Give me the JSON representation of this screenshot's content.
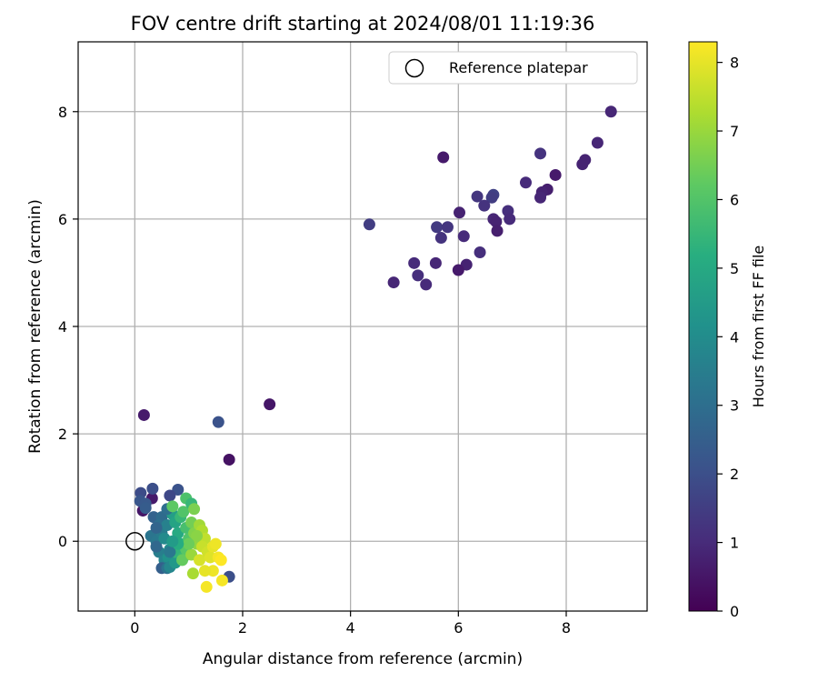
{
  "chart_data": {
    "type": "scatter",
    "title": "FOV centre drift starting at 2024/08/01 11:19:36",
    "xlabel": "Angular distance from reference (arcmin)",
    "ylabel": "Rotation from reference (arcmin)",
    "xlim": [
      -1.05,
      9.5
    ],
    "ylim": [
      -1.3,
      9.3
    ],
    "xticks": [
      0,
      2,
      4,
      6,
      8
    ],
    "yticks": [
      0,
      2,
      4,
      6,
      8
    ],
    "grid": true,
    "legend": {
      "position": "top-right",
      "entries": [
        "Reference platepar"
      ]
    },
    "reference_point": {
      "x": 0,
      "y": 0,
      "label": "Reference platepar"
    },
    "colorbar": {
      "label": "Hours from first FF file",
      "colormap": "viridis",
      "range": [
        0,
        8.3
      ],
      "ticks": [
        0,
        1,
        2,
        3,
        4,
        5,
        6,
        7,
        8
      ]
    },
    "series": [
      {
        "values": [
          [
            8.83,
            8.0,
            0.9
          ],
          [
            8.58,
            7.42,
            0.9
          ],
          [
            8.35,
            7.1,
            0.8
          ],
          [
            8.3,
            7.02,
            0.8
          ],
          [
            7.52,
            7.22,
            1.2
          ],
          [
            7.8,
            6.82,
            0.6
          ],
          [
            7.25,
            6.68,
            1.0
          ],
          [
            7.65,
            6.55,
            0.7
          ],
          [
            7.55,
            6.5,
            0.8
          ],
          [
            7.52,
            6.4,
            0.9
          ],
          [
            5.72,
            7.15,
            0.6
          ],
          [
            6.65,
            6.45,
            1.6
          ],
          [
            6.62,
            6.4,
            1.5
          ],
          [
            6.35,
            6.42,
            1.3
          ],
          [
            6.48,
            6.25,
            1.2
          ],
          [
            6.92,
            6.15,
            1.1
          ],
          [
            6.95,
            6.0,
            1.0
          ],
          [
            6.65,
            6.0,
            0.9
          ],
          [
            6.7,
            5.95,
            0.8
          ],
          [
            6.72,
            5.78,
            0.7
          ],
          [
            6.02,
            6.12,
            0.8
          ],
          [
            5.6,
            5.85,
            1.4
          ],
          [
            5.8,
            5.85,
            1.3
          ],
          [
            5.68,
            5.65,
            1.2
          ],
          [
            6.1,
            5.68,
            1.0
          ],
          [
            6.4,
            5.38,
            1.1
          ],
          [
            5.18,
            5.18,
            1.0
          ],
          [
            5.58,
            5.18,
            0.9
          ],
          [
            6.15,
            5.15,
            0.8
          ],
          [
            5.25,
            4.95,
            1.1
          ],
          [
            6.0,
            5.05,
            0.6
          ],
          [
            5.4,
            4.78,
            1.0
          ],
          [
            4.8,
            4.82,
            0.9
          ],
          [
            4.35,
            5.9,
            1.5
          ],
          [
            2.5,
            2.55,
            0.5
          ],
          [
            1.55,
            2.22,
            2.1
          ],
          [
            1.75,
            1.52,
            0.4
          ],
          [
            0.17,
            2.35,
            0.6
          ],
          [
            1.75,
            -0.66,
            2.0
          ],
          [
            0.15,
            0.57,
            0.5
          ],
          [
            0.32,
            0.8,
            0.6
          ],
          [
            0.11,
            0.9,
            1.9
          ],
          [
            0.33,
            0.98,
            2.0
          ],
          [
            0.8,
            0.96,
            2.1
          ],
          [
            0.1,
            0.75,
            2.2
          ],
          [
            0.2,
            0.7,
            2.3
          ],
          [
            0.65,
            0.85,
            1.8
          ],
          [
            0.2,
            0.62,
            2.4
          ],
          [
            0.35,
            0.45,
            2.6
          ],
          [
            0.5,
            0.45,
            2.9
          ],
          [
            0.45,
            0.3,
            3.0
          ],
          [
            0.3,
            0.1,
            3.2
          ],
          [
            0.4,
            0.0,
            3.3
          ],
          [
            0.45,
            -0.2,
            3.5
          ],
          [
            0.55,
            -0.35,
            3.7
          ],
          [
            0.4,
            -0.1,
            2.8
          ],
          [
            0.5,
            0.15,
            3.4
          ],
          [
            0.6,
            0.3,
            3.6
          ],
          [
            0.55,
            0.05,
            3.9
          ],
          [
            0.65,
            -0.15,
            4.0
          ],
          [
            0.62,
            -0.3,
            4.2
          ],
          [
            0.5,
            -0.5,
            2.5
          ],
          [
            0.6,
            -0.5,
            3.1
          ],
          [
            0.65,
            -0.48,
            3.8
          ],
          [
            0.75,
            -0.4,
            4.4
          ],
          [
            0.7,
            0.5,
            4.6
          ],
          [
            0.6,
            0.6,
            3.0
          ],
          [
            0.75,
            0.35,
            4.8
          ],
          [
            0.8,
            0.15,
            5.0
          ],
          [
            0.85,
            -0.05,
            5.2
          ],
          [
            0.75,
            -0.2,
            5.4
          ],
          [
            0.9,
            -0.3,
            5.6
          ],
          [
            0.85,
            0.45,
            5.5
          ],
          [
            0.95,
            0.25,
            5.8
          ],
          [
            1.0,
            0.05,
            6.0
          ],
          [
            0.95,
            -0.15,
            6.1
          ],
          [
            0.7,
            0.65,
            6.2
          ],
          [
            0.9,
            0.55,
            6.0
          ],
          [
            0.95,
            0.8,
            5.9
          ],
          [
            1.05,
            0.7,
            5.5
          ],
          [
            1.1,
            0.6,
            6.6
          ],
          [
            0.88,
            -0.35,
            6.3
          ],
          [
            1.05,
            0.35,
            6.5
          ],
          [
            1.1,
            0.15,
            6.7
          ],
          [
            1.15,
            -0.05,
            6.9
          ],
          [
            1.05,
            -0.25,
            7.0
          ],
          [
            1.2,
            0.3,
            7.1
          ],
          [
            1.25,
            0.2,
            7.3
          ],
          [
            1.3,
            0.05,
            7.5
          ],
          [
            1.25,
            -0.1,
            7.6
          ],
          [
            1.35,
            -0.2,
            7.7
          ],
          [
            1.2,
            -0.35,
            7.8
          ],
          [
            1.4,
            -0.3,
            7.9
          ],
          [
            1.45,
            -0.1,
            8.0
          ],
          [
            1.5,
            -0.05,
            8.1
          ],
          [
            1.55,
            -0.3,
            8.2
          ],
          [
            1.6,
            -0.35,
            8.3
          ],
          [
            1.45,
            -0.55,
            8.1
          ],
          [
            1.3,
            -0.55,
            8.0
          ],
          [
            1.62,
            -0.73,
            8.2
          ],
          [
            1.33,
            -0.85,
            8.2
          ],
          [
            1.08,
            -0.6,
            7.2
          ],
          [
            0.65,
            -0.2,
            3.3
          ],
          [
            0.4,
            0.25,
            2.7
          ],
          [
            1.15,
            0.1,
            6.8
          ],
          [
            1.0,
            -0.05,
            6.4
          ],
          [
            0.8,
            -0.05,
            5.1
          ],
          [
            0.7,
            0.0,
            4.5
          ]
        ]
      }
    ]
  }
}
